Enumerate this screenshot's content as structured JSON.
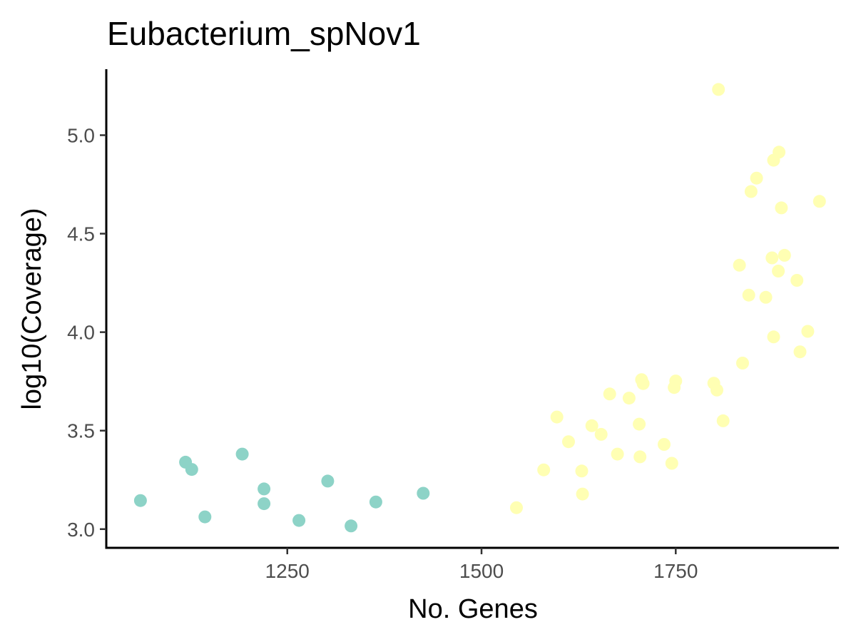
{
  "chart_data": {
    "type": "scatter",
    "title": "Eubacterium_spNov1",
    "xlabel": "No. Genes",
    "ylabel": "log10(Coverage)",
    "xlim": [
      1017,
      1960
    ],
    "ylim": [
      2.905,
      5.335
    ],
    "x_ticks": [
      1250,
      1500,
      1750
    ],
    "y_ticks": [
      3.0,
      3.5,
      4.0,
      4.5,
      5.0
    ],
    "x_tick_labels": [
      "1250",
      "1500",
      "1750"
    ],
    "y_tick_labels": [
      "3.0",
      "3.5",
      "4.0",
      "4.5",
      "5.0"
    ],
    "grid": false,
    "legend": "none",
    "series": [
      {
        "color": "#8dd3c7",
        "points": [
          {
            "x": 1061,
            "y": 3.145
          },
          {
            "x": 1119,
            "y": 3.34
          },
          {
            "x": 1127,
            "y": 3.303
          },
          {
            "x": 1144,
            "y": 3.062
          },
          {
            "x": 1192,
            "y": 3.381
          },
          {
            "x": 1220,
            "y": 3.204
          },
          {
            "x": 1220,
            "y": 3.129
          },
          {
            "x": 1265,
            "y": 3.044
          },
          {
            "x": 1302,
            "y": 3.244
          },
          {
            "x": 1332,
            "y": 3.016
          },
          {
            "x": 1364,
            "y": 3.138
          },
          {
            "x": 1425,
            "y": 3.182
          }
        ]
      },
      {
        "color": "#ffffb3",
        "points": [
          {
            "x": 1545,
            "y": 3.109
          },
          {
            "x": 1580,
            "y": 3.301
          },
          {
            "x": 1597,
            "y": 3.569
          },
          {
            "x": 1612,
            "y": 3.444
          },
          {
            "x": 1629,
            "y": 3.295
          },
          {
            "x": 1630,
            "y": 3.178
          },
          {
            "x": 1642,
            "y": 3.525
          },
          {
            "x": 1654,
            "y": 3.481
          },
          {
            "x": 1665,
            "y": 3.686
          },
          {
            "x": 1675,
            "y": 3.381
          },
          {
            "x": 1690,
            "y": 3.665
          },
          {
            "x": 1703,
            "y": 3.533
          },
          {
            "x": 1704,
            "y": 3.367
          },
          {
            "x": 1706,
            "y": 3.759
          },
          {
            "x": 1708,
            "y": 3.739
          },
          {
            "x": 1735,
            "y": 3.43
          },
          {
            "x": 1745,
            "y": 3.334
          },
          {
            "x": 1748,
            "y": 3.719
          },
          {
            "x": 1750,
            "y": 3.752
          },
          {
            "x": 1799,
            "y": 3.741
          },
          {
            "x": 1803,
            "y": 3.706
          },
          {
            "x": 1805,
            "y": 5.232
          },
          {
            "x": 1811,
            "y": 3.55
          },
          {
            "x": 1832,
            "y": 4.34
          },
          {
            "x": 1836,
            "y": 3.843
          },
          {
            "x": 1844,
            "y": 4.188
          },
          {
            "x": 1847,
            "y": 4.714
          },
          {
            "x": 1854,
            "y": 4.782
          },
          {
            "x": 1866,
            "y": 4.177
          },
          {
            "x": 1874,
            "y": 4.377
          },
          {
            "x": 1876,
            "y": 3.976
          },
          {
            "x": 1876,
            "y": 4.873
          },
          {
            "x": 1882,
            "y": 4.31
          },
          {
            "x": 1883,
            "y": 4.914
          },
          {
            "x": 1886,
            "y": 4.631
          },
          {
            "x": 1890,
            "y": 4.39
          },
          {
            "x": 1906,
            "y": 4.263
          },
          {
            "x": 1910,
            "y": 3.9
          },
          {
            "x": 1920,
            "y": 4.004
          },
          {
            "x": 1935,
            "y": 4.664
          }
        ]
      }
    ]
  }
}
